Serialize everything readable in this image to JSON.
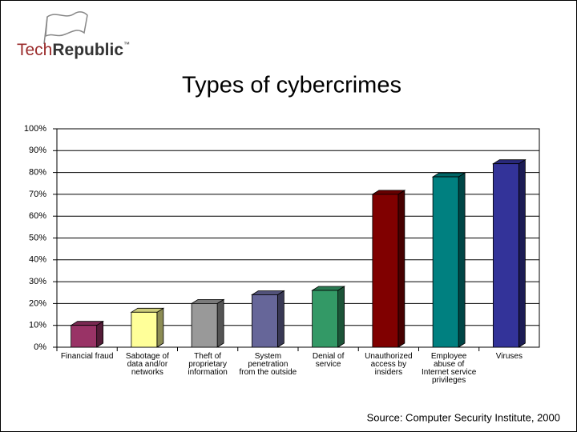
{
  "logo": {
    "part1": "Tech",
    "part2": "Republic",
    "mark": "™"
  },
  "chart_data": {
    "type": "bar",
    "title": "Types of cybercrimes",
    "source": "Source: Computer Security Institute, 2000",
    "categories": [
      "Financial fraud",
      "Sabotage of data and/or networks",
      "Theft of proprietary information",
      "System penetration from the outside",
      "Denial of service",
      "Unauthorized access by insiders",
      "Employee abuse of Internet service privileges",
      "Viruses"
    ],
    "values": [
      10,
      16,
      20,
      24,
      26,
      70,
      78,
      84
    ],
    "colors": [
      "#993366",
      "#ffff99",
      "#999999",
      "#666699",
      "#339966",
      "#800000",
      "#008080",
      "#333399"
    ],
    "ylim": [
      0,
      100
    ],
    "yticks": [
      {
        "value": 0,
        "label": "0%"
      },
      {
        "value": 10,
        "label": "10%"
      },
      {
        "value": 20,
        "label": "20%"
      },
      {
        "value": 30,
        "label": "30%"
      },
      {
        "value": 40,
        "label": "40%"
      },
      {
        "value": 50,
        "label": "50%"
      },
      {
        "value": 60,
        "label": "60%"
      },
      {
        "value": 70,
        "label": "70%"
      },
      {
        "value": 80,
        "label": "80%"
      },
      {
        "value": 90,
        "label": "90%"
      },
      {
        "value": 100,
        "label": "100%"
      }
    ],
    "grid": true
  }
}
